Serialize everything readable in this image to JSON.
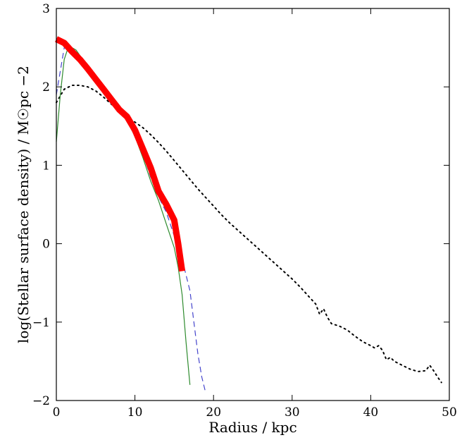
{
  "chart_data": {
    "type": "line",
    "xlabel": "Radius / kpc",
    "ylabel": "log(Stellar surface density) / M☉pc −2",
    "xlim": [
      0,
      50
    ],
    "ylim": [
      -2,
      3
    ],
    "xticks": [
      0,
      10,
      20,
      30,
      40,
      50
    ],
    "yticks": [
      -2,
      -1,
      0,
      1,
      2,
      3
    ],
    "xtick_labels": [
      "0",
      "10",
      "20",
      "30",
      "40",
      "50"
    ],
    "ytick_labels": [
      "−2",
      "−1",
      "0",
      "1",
      "2",
      "3"
    ],
    "grid": false,
    "series": [
      {
        "style": "dotted",
        "color": "#000000",
        "x": [
          0,
          1,
          2,
          3,
          4,
          5,
          6,
          7,
          8,
          9,
          10,
          11,
          12,
          13,
          14,
          15,
          16,
          17,
          18,
          19,
          20,
          21,
          22,
          23,
          24,
          25,
          26,
          27,
          28,
          29,
          30,
          31,
          32,
          33,
          33.5,
          34,
          34.5,
          35,
          36,
          37,
          38,
          39,
          40,
          40.5,
          41,
          41.5,
          42,
          42.5,
          43,
          44,
          45,
          46,
          47,
          47.5,
          48,
          48.5,
          49
        ],
        "y": [
          1.8,
          1.97,
          2.02,
          2.02,
          2.0,
          1.95,
          1.87,
          1.78,
          1.7,
          1.62,
          1.55,
          1.48,
          1.39,
          1.29,
          1.18,
          1.06,
          0.94,
          0.82,
          0.7,
          0.59,
          0.48,
          0.37,
          0.27,
          0.18,
          0.09,
          0.0,
          -0.09,
          -0.18,
          -0.27,
          -0.36,
          -0.45,
          -0.55,
          -0.66,
          -0.77,
          -0.9,
          -0.83,
          -0.94,
          -1.02,
          -1.05,
          -1.1,
          -1.18,
          -1.25,
          -1.3,
          -1.33,
          -1.3,
          -1.36,
          -1.48,
          -1.45,
          -1.5,
          -1.55,
          -1.6,
          -1.63,
          -1.62,
          -1.55,
          -1.62,
          -1.7,
          -1.77
        ]
      },
      {
        "style": "dashed",
        "color": "#4444cc",
        "x": [
          0,
          0.5,
          1,
          1.5,
          2,
          3,
          4,
          5,
          6,
          7,
          8,
          9,
          10,
          11,
          12,
          13,
          14,
          15,
          16,
          17,
          17.5,
          18,
          18.5,
          19
        ],
        "y": [
          1.9,
          2.2,
          2.5,
          2.48,
          2.42,
          2.3,
          2.18,
          2.06,
          1.94,
          1.82,
          1.7,
          1.58,
          1.42,
          1.15,
          0.85,
          0.6,
          0.4,
          0.1,
          -0.2,
          -0.6,
          -1.0,
          -1.4,
          -1.7,
          -1.9
        ]
      },
      {
        "style": "solid",
        "color": "#2e8b2e",
        "x": [
          0,
          0.5,
          1,
          1.5,
          2,
          2.5,
          3,
          4,
          5,
          6,
          7,
          8,
          9,
          10,
          11,
          12,
          13,
          14,
          15,
          15.5,
          16,
          16.5,
          17
        ],
        "y": [
          1.3,
          1.9,
          2.35,
          2.5,
          2.5,
          2.47,
          2.4,
          2.25,
          2.1,
          1.95,
          1.82,
          1.7,
          1.57,
          1.37,
          1.1,
          0.8,
          0.55,
          0.25,
          -0.05,
          -0.3,
          -0.65,
          -1.25,
          -1.8
        ]
      },
      {
        "style": "thick",
        "color": "#ff0000",
        "x": [
          0,
          1,
          2,
          3,
          4,
          5,
          6,
          7,
          8,
          9,
          10,
          11,
          12,
          13,
          14,
          15,
          15.5,
          16
        ],
        "y": [
          2.61,
          2.56,
          2.45,
          2.35,
          2.23,
          2.1,
          1.97,
          1.84,
          1.71,
          1.62,
          1.45,
          1.21,
          0.97,
          0.67,
          0.5,
          0.3,
          0.0,
          -0.35
        ]
      }
    ]
  }
}
